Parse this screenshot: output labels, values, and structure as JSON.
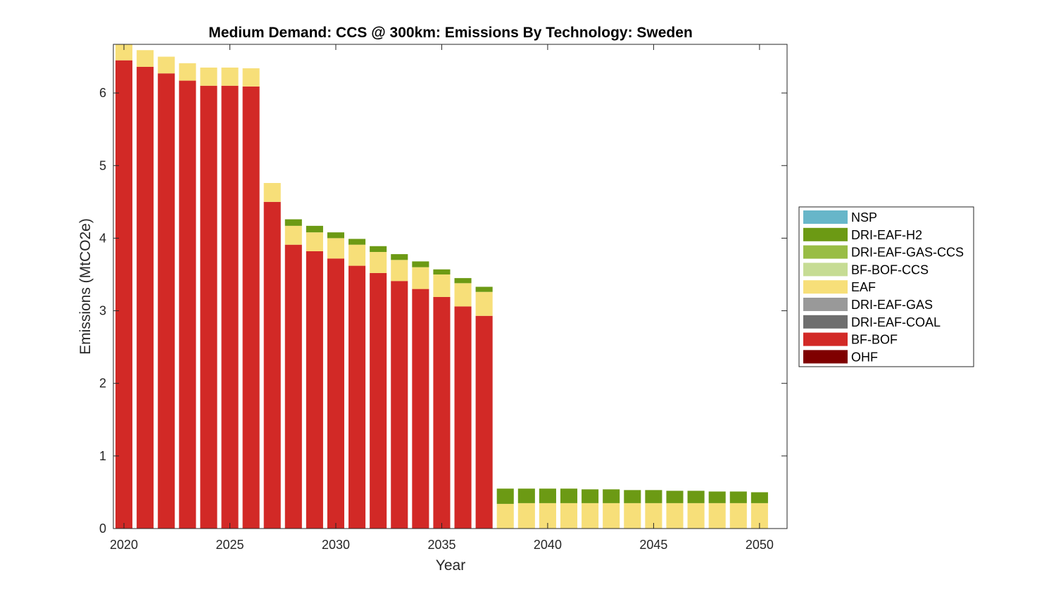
{
  "chart_data": {
    "type": "bar",
    "stacked": true,
    "title": "Medium Demand: CCS @ 300km: Emissions By Technology: Sweden",
    "xlabel": "Year",
    "ylabel": "Emissions (MtCO2e)",
    "xlim": [
      2019.5,
      2051.3
    ],
    "ylim": [
      0,
      6.67
    ],
    "xticks": [
      2020,
      2025,
      2030,
      2035,
      2040,
      2045,
      2050
    ],
    "yticks": [
      0,
      1,
      2,
      3,
      4,
      5,
      6
    ],
    "legend_position": "right",
    "categories": [
      2020,
      2021,
      2022,
      2023,
      2024,
      2025,
      2026,
      2027,
      2028,
      2029,
      2030,
      2031,
      2032,
      2033,
      2034,
      2035,
      2036,
      2037,
      2038,
      2039,
      2040,
      2041,
      2042,
      2043,
      2044,
      2045,
      2046,
      2047,
      2048,
      2049,
      2050
    ],
    "series": [
      {
        "name": "OHF",
        "color": "#7f0000",
        "values": [
          0,
          0,
          0,
          0,
          0,
          0,
          0,
          0,
          0,
          0,
          0,
          0,
          0,
          0,
          0,
          0,
          0,
          0,
          0,
          0,
          0,
          0,
          0,
          0,
          0,
          0,
          0,
          0,
          0,
          0,
          0
        ]
      },
      {
        "name": "BF-BOF",
        "color": "#d22926",
        "values": [
          6.45,
          6.36,
          6.27,
          6.17,
          6.1,
          6.1,
          6.09,
          4.5,
          3.91,
          3.82,
          3.72,
          3.62,
          3.52,
          3.41,
          3.3,
          3.19,
          3.06,
          2.93,
          0,
          0,
          0,
          0,
          0,
          0,
          0,
          0,
          0,
          0,
          0,
          0,
          0
        ]
      },
      {
        "name": "DRI-EAF-COAL",
        "color": "#6e6e6e",
        "values": [
          0,
          0,
          0,
          0,
          0,
          0,
          0,
          0,
          0,
          0,
          0,
          0,
          0,
          0,
          0,
          0,
          0,
          0,
          0,
          0,
          0,
          0,
          0,
          0,
          0,
          0,
          0,
          0,
          0,
          0,
          0
        ]
      },
      {
        "name": "DRI-EAF-GAS",
        "color": "#999999",
        "values": [
          0,
          0,
          0,
          0,
          0,
          0,
          0,
          0,
          0,
          0,
          0,
          0,
          0,
          0,
          0,
          0,
          0,
          0,
          0,
          0,
          0,
          0,
          0,
          0,
          0,
          0,
          0,
          0,
          0,
          0,
          0
        ]
      },
      {
        "name": "EAF",
        "color": "#f7df79",
        "values": [
          0.25,
          0.23,
          0.23,
          0.24,
          0.25,
          0.25,
          0.25,
          0.26,
          0.26,
          0.26,
          0.28,
          0.29,
          0.29,
          0.29,
          0.3,
          0.31,
          0.32,
          0.33,
          0.34,
          0.35,
          0.35,
          0.35,
          0.35,
          0.35,
          0.35,
          0.35,
          0.35,
          0.35,
          0.35,
          0.35,
          0.35
        ]
      },
      {
        "name": "BF-BOF-CCS",
        "color": "#c6dc94",
        "values": [
          0,
          0,
          0,
          0,
          0,
          0,
          0,
          0,
          0,
          0,
          0,
          0,
          0,
          0,
          0,
          0,
          0,
          0,
          0,
          0,
          0,
          0,
          0,
          0,
          0,
          0,
          0,
          0,
          0,
          0,
          0
        ]
      },
      {
        "name": "DRI-EAF-GAS-CCS",
        "color": "#99bd45",
        "values": [
          0,
          0,
          0,
          0,
          0,
          0,
          0,
          0,
          0,
          0,
          0,
          0,
          0,
          0,
          0,
          0,
          0,
          0,
          0,
          0,
          0,
          0,
          0,
          0,
          0,
          0,
          0,
          0,
          0,
          0,
          0
        ]
      },
      {
        "name": "DRI-EAF-H2",
        "color": "#6c9a14",
        "values": [
          0,
          0,
          0,
          0,
          0,
          0,
          0,
          0,
          0.09,
          0.09,
          0.08,
          0.08,
          0.08,
          0.08,
          0.08,
          0.07,
          0.07,
          0.07,
          0.21,
          0.2,
          0.2,
          0.2,
          0.19,
          0.19,
          0.18,
          0.18,
          0.17,
          0.17,
          0.16,
          0.16,
          0.15
        ]
      },
      {
        "name": "NSP",
        "color": "#67b6c9",
        "values": [
          0,
          0,
          0,
          0,
          0,
          0,
          0,
          0,
          0,
          0,
          0,
          0,
          0,
          0,
          0,
          0,
          0,
          0,
          0,
          0,
          0,
          0,
          0,
          0,
          0,
          0,
          0,
          0,
          0,
          0,
          0
        ]
      }
    ],
    "legend_order": [
      "NSP",
      "DRI-EAF-H2",
      "DRI-EAF-GAS-CCS",
      "BF-BOF-CCS",
      "EAF",
      "DRI-EAF-GAS",
      "DRI-EAF-COAL",
      "BF-BOF",
      "OHF"
    ]
  }
}
